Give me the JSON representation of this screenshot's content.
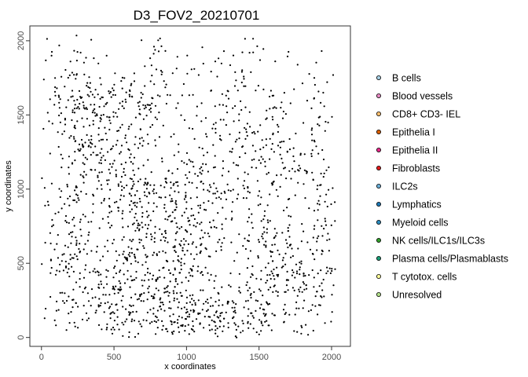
{
  "chart_data": {
    "type": "scatter",
    "title": "D3_FOV2_20210701",
    "xlabel": "x coordinates",
    "ylabel": "y coordinates",
    "xlim": [
      -80,
      2130
    ],
    "ylim": [
      -60,
      2100
    ],
    "xticks": [
      0,
      500,
      1000,
      1500,
      2000
    ],
    "yticks": [
      0,
      500,
      1000,
      1500,
      2000
    ],
    "grid": false,
    "legend_position": "right",
    "point_color": "#000000",
    "legend": [
      {
        "name": "B cells",
        "color": "#a6cee3"
      },
      {
        "name": "Blood vessels",
        "color": "#e78ac3"
      },
      {
        "name": "CD8+ CD3- IEL",
        "color": "#fdbf6f"
      },
      {
        "name": "Epithelia I",
        "color": "#d95f02"
      },
      {
        "name": "Epithelia II",
        "color": "#e7298a"
      },
      {
        "name": "Fibroblasts",
        "color": "#e31a1c"
      },
      {
        "name": "ILC2s",
        "color": "#6baed6"
      },
      {
        "name": "Lymphatics",
        "color": "#1f78b4"
      },
      {
        "name": "Myeloid cells",
        "color": "#2b8cbe"
      },
      {
        "name": "NK cells/ILC1s/ILC3s",
        "color": "#33a02c"
      },
      {
        "name": "Plasma cells/Plasmablasts",
        "color": "#1b9e77"
      },
      {
        "name": "T cytotox. cells",
        "color": "#ffff99"
      },
      {
        "name": "Unresolved",
        "color": "#b2df8a"
      }
    ],
    "clusters": [
      {
        "x": 200,
        "y": 600,
        "sx": 130,
        "sy": 420,
        "n": 220
      },
      {
        "x": 330,
        "y": 1350,
        "sx": 110,
        "sy": 160,
        "n": 90
      },
      {
        "x": 250,
        "y": 1650,
        "sx": 120,
        "sy": 120,
        "n": 60
      },
      {
        "x": 560,
        "y": 1600,
        "sx": 160,
        "sy": 80,
        "n": 60
      },
      {
        "x": 470,
        "y": 1150,
        "sx": 90,
        "sy": 220,
        "n": 70
      },
      {
        "x": 700,
        "y": 1200,
        "sx": 90,
        "sy": 320,
        "n": 90
      },
      {
        "x": 620,
        "y": 700,
        "sx": 110,
        "sy": 220,
        "n": 100
      },
      {
        "x": 800,
        "y": 350,
        "sx": 160,
        "sy": 220,
        "n": 130
      },
      {
        "x": 500,
        "y": 250,
        "sx": 150,
        "sy": 170,
        "n": 110
      },
      {
        "x": 1000,
        "y": 600,
        "sx": 120,
        "sy": 300,
        "n": 160
      },
      {
        "x": 1050,
        "y": 150,
        "sx": 200,
        "sy": 100,
        "n": 90
      },
      {
        "x": 1200,
        "y": 1100,
        "sx": 100,
        "sy": 300,
        "n": 90
      },
      {
        "x": 1450,
        "y": 1300,
        "sx": 110,
        "sy": 280,
        "n": 90
      },
      {
        "x": 1650,
        "y": 1100,
        "sx": 80,
        "sy": 350,
        "n": 80
      },
      {
        "x": 1550,
        "y": 500,
        "sx": 130,
        "sy": 280,
        "n": 120
      },
      {
        "x": 1350,
        "y": 150,
        "sx": 170,
        "sy": 100,
        "n": 90
      },
      {
        "x": 1800,
        "y": 300,
        "sx": 150,
        "sy": 150,
        "n": 110
      },
      {
        "x": 1880,
        "y": 1300,
        "sx": 80,
        "sy": 320,
        "n": 70
      },
      {
        "x": 1950,
        "y": 700,
        "sx": 60,
        "sy": 250,
        "n": 50
      },
      {
        "x": 900,
        "y": 1800,
        "sx": 150,
        "sy": 180,
        "n": 40
      },
      {
        "x": 1300,
        "y": 1800,
        "sx": 150,
        "sy": 150,
        "n": 30
      },
      {
        "x": 250,
        "y": 1950,
        "sx": 120,
        "sy": 60,
        "n": 15
      },
      {
        "x": 950,
        "y": 1000,
        "sx": 120,
        "sy": 200,
        "n": 60
      }
    ]
  }
}
